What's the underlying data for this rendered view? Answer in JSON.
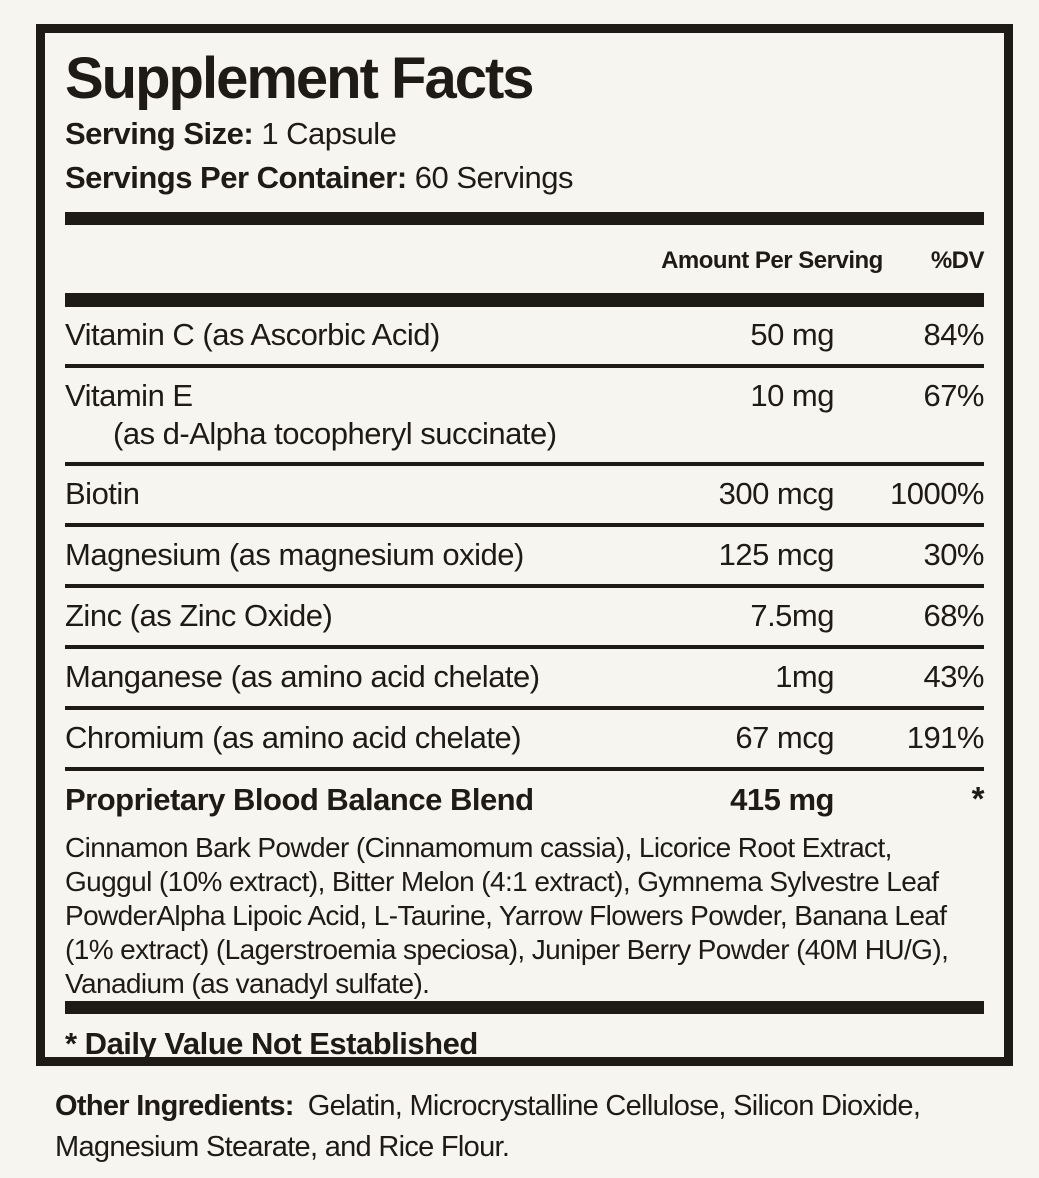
{
  "label": {
    "title": "Supplement Facts",
    "serving_size_label": "Serving Size:",
    "serving_size_value": "1 Capsule",
    "servings_per_container_label": "Servings Per Container:",
    "servings_per_container_value": "60 Servings",
    "column_headers": {
      "amount": "Amount Per Serving",
      "dv": "%DV"
    },
    "rows": [
      {
        "name": "Vitamin C (as Ascorbic Acid)",
        "amount": "50 mg",
        "dv": "84%"
      },
      {
        "name": "Vitamin E",
        "sub": "(as d-Alpha tocopheryl succinate)",
        "amount": "10 mg",
        "dv": "67%"
      },
      {
        "name": "Biotin",
        "amount": "300 mcg",
        "dv": "1000%"
      },
      {
        "name": "Magnesium (as magnesium oxide)",
        "amount": "125 mcg",
        "dv": "30%"
      },
      {
        "name": "Zinc (as Zinc Oxide)",
        "amount": "7.5mg",
        "dv": "68%"
      },
      {
        "name": "Manganese (as amino acid chelate)",
        "amount": "1mg",
        "dv": "43%"
      },
      {
        "name": "Chromium (as amino acid chelate)",
        "amount": "67 mcg",
        "dv": "191%"
      }
    ],
    "blend": {
      "name": "Proprietary Blood Balance Blend",
      "amount": "415 mg",
      "dv": "*",
      "description": "Cinnamon Bark Powder (Cinnamomum cassia), Licorice Root Extract, Guggul (10% extract), Bitter Melon (4:1 extract), Gymnema Sylvestre Leaf PowderAlpha Lipoic Acid, L-Taurine, Yarrow Flowers Powder, Banana Leaf (1% extract) (Lagerstroemia speciosa), Juniper Berry Powder (40M HU/G), Vanadium (as vanadyl sulfate)."
    },
    "footnote": "* Daily Value Not Established",
    "other_ingredients_label": "Other Ingredients:",
    "other_ingredients_value": "Gelatin, Microcrystalline Cellulose, Silicon Dioxide, Magnesium Stearate, and Rice Flour.",
    "colors": {
      "background": "#f7f5ef",
      "ink": "#1e1b16"
    }
  }
}
